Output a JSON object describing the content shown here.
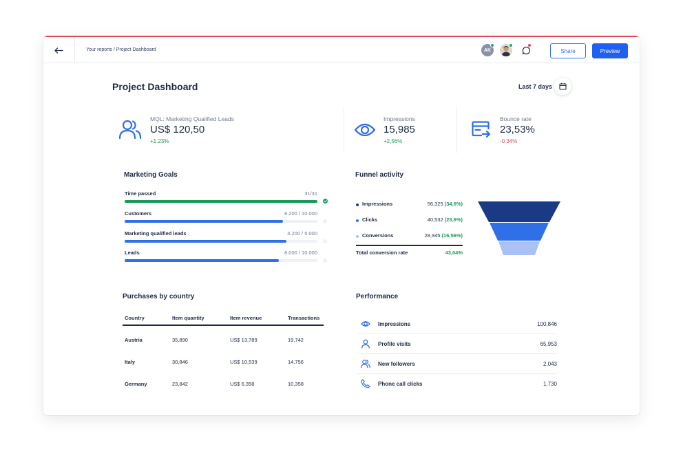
{
  "topbar": {
    "breadcrumb": "Your reports / Project Dashboard",
    "avatar_initials": "AK",
    "share_label": "Share",
    "preview_label": "Preview"
  },
  "header": {
    "title": "Project Dashboard",
    "date_range": "Last 7 days"
  },
  "kpis": [
    {
      "label": "MQL: Marketing Qualified Leads",
      "value": "US$ 120,50",
      "change": "+1.23%",
      "icon": "users-icon"
    },
    {
      "label": "Impressions",
      "value": "15,985",
      "change": "+2,56%",
      "icon": "eye-icon"
    },
    {
      "label": "Bounce rate",
      "value": "23,53%",
      "change": "-0.34%",
      "icon": "browser-exit-icon"
    }
  ],
  "marketing_goals": {
    "title": "Marketing Goals",
    "items": [
      {
        "label": "Time passed",
        "value": "31/31",
        "progress": 1.0,
        "color": "#1a9a5a",
        "complete": true
      },
      {
        "label": "Customers",
        "value": "8.200 / 10.000",
        "progress": 0.82,
        "color": "#2f6fe8",
        "complete": false
      },
      {
        "label": "Marketing qualified leads",
        "value": "4.200 / 5.000",
        "progress": 0.84,
        "color": "#2f6fe8",
        "complete": false
      },
      {
        "label": "Leads",
        "value": "8.000 / 10.000",
        "progress": 0.8,
        "color": "#2f6fe8",
        "complete": false
      }
    ]
  },
  "funnel": {
    "title": "Funnel activity",
    "rows": [
      {
        "label": "Impressions",
        "value": "56,325",
        "pct": "(34,6%)",
        "color": "#1b3a86"
      },
      {
        "label": "Clicks",
        "value": "40,532",
        "pct": "(23,6%)",
        "color": "#2f6fe8"
      },
      {
        "label": "Conversions",
        "value": "28,945",
        "pct": "(16,56%)",
        "color": "#a9c1f3"
      }
    ],
    "total_label": "Total conversion rate",
    "total_value": "43,04%"
  },
  "purchases": {
    "title": "Purchases by country",
    "columns": [
      "Country",
      "Item quantity",
      "Item revenue",
      "Transactions"
    ],
    "rows": [
      [
        "Austria",
        "35,890",
        "US$ 13,789",
        "19,742"
      ],
      [
        "Italy",
        "30,846",
        "US$ 10,539",
        "14,756"
      ],
      [
        "Germany",
        "23,842",
        "US$ 6,358",
        "10,358"
      ]
    ]
  },
  "performance": {
    "title": "Performance",
    "rows": [
      {
        "label": "Impressions",
        "value": "100,846",
        "icon": "eye-icon"
      },
      {
        "label": "Profile visits",
        "value": "65,953",
        "icon": "user-icon"
      },
      {
        "label": "New followers",
        "value": "2,043",
        "icon": "users-icon"
      },
      {
        "label": "Phone call clicks",
        "value": "1,730",
        "icon": "phone-icon"
      }
    ]
  },
  "colors": {
    "accent": "#2060f0",
    "positive": "#1a9a5a",
    "negative": "#e0455a"
  }
}
